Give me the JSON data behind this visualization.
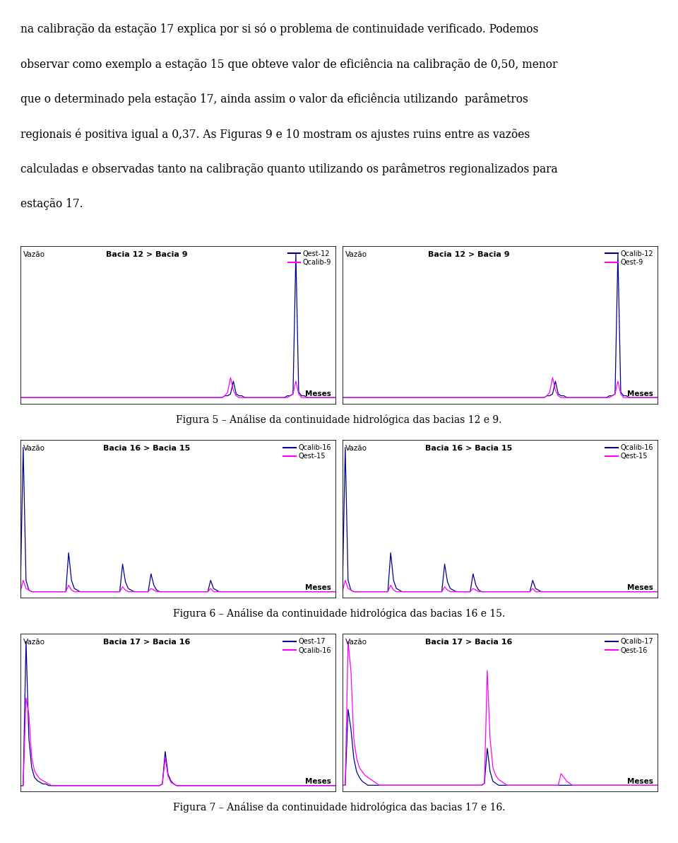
{
  "text_paragraph_lines": [
    "na calibração da estação 17 explica por si só o problema de continuidade verificado. Podemos",
    "observar como exemplo a estação 15 que obteve valor de eficiência na calibração de 0,50, menor",
    "que o determinado pela estação 17, ainda assim o valor da eficiência utilizando  parâmetros",
    "regionais é positiva igual a 0,37. As Figuras 9 e 10 mostram os ajustes ruins entre as vazões",
    "calculadas e observadas tanto na calibração quanto utilizando os parâmetros regionalizados para",
    "estação 17."
  ],
  "dark_blue": "#00008B",
  "magenta": "#FF00FF",
  "captions": [
    "Figura 5 – Análise da continuidade hidrológica das bacias 12 e 9.",
    "Figura 6 – Análise da continuidade hidrológica das bacias 16 e 15.",
    "Figura 7 – Análise da continuidade hidrológica das bacias 17 e 16."
  ],
  "panels": [
    {
      "title": "Bacia 12 > Bacia 9",
      "line1_label": "Qest-12",
      "line2_label": "Qcalib-9",
      "line1_color": "#00008B",
      "line2_color": "#FF00FF",
      "ylabel": "Vazão",
      "xlabel": "Meses",
      "data1": [
        1,
        1,
        1,
        1,
        1,
        1,
        1,
        1,
        1,
        1,
        1,
        1,
        1,
        1,
        1,
        1,
        1,
        1,
        1,
        1,
        1,
        1,
        1,
        1,
        1,
        1,
        1,
        1,
        1,
        1,
        1,
        1,
        1,
        1,
        1,
        1,
        1,
        1,
        1,
        1,
        1,
        1,
        1,
        1,
        1,
        1,
        1,
        1,
        1,
        1,
        1,
        1,
        1,
        1,
        1,
        1,
        1,
        1,
        1,
        1,
        1,
        1,
        1,
        1,
        1,
        1,
        1,
        1,
        1,
        1,
        1,
        1,
        2,
        2,
        3,
        10,
        3,
        2,
        2,
        1,
        1,
        1,
        1,
        1,
        1,
        1,
        1,
        1,
        1,
        1,
        1,
        1,
        1,
        1,
        2,
        2,
        3,
        80,
        4,
        2,
        2,
        1,
        1,
        1,
        1,
        1,
        1,
        1,
        1,
        1,
        1,
        1
      ],
      "data2": [
        1,
        1,
        1,
        1,
        1,
        1,
        1,
        1,
        1,
        1,
        1,
        1,
        1,
        1,
        1,
        1,
        1,
        1,
        1,
        1,
        1,
        1,
        1,
        1,
        1,
        1,
        1,
        1,
        1,
        1,
        1,
        1,
        1,
        1,
        1,
        1,
        1,
        1,
        1,
        1,
        1,
        1,
        1,
        1,
        1,
        1,
        1,
        1,
        1,
        1,
        1,
        1,
        1,
        1,
        1,
        1,
        1,
        1,
        1,
        1,
        1,
        1,
        1,
        1,
        1,
        1,
        1,
        1,
        1,
        1,
        1,
        1,
        2,
        4,
        12,
        5,
        2,
        1,
        1,
        1,
        1,
        1,
        1,
        1,
        1,
        1,
        1,
        1,
        1,
        1,
        1,
        1,
        1,
        1,
        1,
        2,
        3,
        10,
        3,
        1,
        1,
        1,
        1,
        1,
        1,
        1,
        1,
        1,
        1,
        1,
        1,
        1
      ]
    },
    {
      "title": "Bacia 12 > Bacia 9",
      "line1_label": "Qcalib-12",
      "line2_label": "Qest-9",
      "line1_color": "#00008B",
      "line2_color": "#FF00FF",
      "ylabel": "Vazão",
      "xlabel": "Meses",
      "data1": [
        1,
        1,
        1,
        1,
        1,
        1,
        1,
        1,
        1,
        1,
        1,
        1,
        1,
        1,
        1,
        1,
        1,
        1,
        1,
        1,
        1,
        1,
        1,
        1,
        1,
        1,
        1,
        1,
        1,
        1,
        1,
        1,
        1,
        1,
        1,
        1,
        1,
        1,
        1,
        1,
        1,
        1,
        1,
        1,
        1,
        1,
        1,
        1,
        1,
        1,
        1,
        1,
        1,
        1,
        1,
        1,
        1,
        1,
        1,
        1,
        1,
        1,
        1,
        1,
        1,
        1,
        1,
        1,
        1,
        1,
        1,
        1,
        2,
        2,
        3,
        10,
        3,
        2,
        2,
        1,
        1,
        1,
        1,
        1,
        1,
        1,
        1,
        1,
        1,
        1,
        1,
        1,
        1,
        1,
        2,
        2,
        3,
        80,
        4,
        2,
        2,
        1,
        1,
        1,
        1,
        1,
        1,
        1,
        1,
        1,
        1,
        1
      ],
      "data2": [
        1,
        1,
        1,
        1,
        1,
        1,
        1,
        1,
        1,
        1,
        1,
        1,
        1,
        1,
        1,
        1,
        1,
        1,
        1,
        1,
        1,
        1,
        1,
        1,
        1,
        1,
        1,
        1,
        1,
        1,
        1,
        1,
        1,
        1,
        1,
        1,
        1,
        1,
        1,
        1,
        1,
        1,
        1,
        1,
        1,
        1,
        1,
        1,
        1,
        1,
        1,
        1,
        1,
        1,
        1,
        1,
        1,
        1,
        1,
        1,
        1,
        1,
        1,
        1,
        1,
        1,
        1,
        1,
        1,
        1,
        1,
        1,
        2,
        4,
        12,
        5,
        2,
        1,
        1,
        1,
        1,
        1,
        1,
        1,
        1,
        1,
        1,
        1,
        1,
        1,
        1,
        1,
        1,
        1,
        1,
        2,
        3,
        10,
        3,
        1,
        1,
        1,
        1,
        1,
        1,
        1,
        1,
        1,
        1,
        1,
        1,
        1
      ]
    },
    {
      "title": "Bacia 16 > Bacia 15",
      "line1_label": "Qcalib-16",
      "line2_label": "Qest-15",
      "line1_color": "#00008B",
      "line2_color": "#FF00FF",
      "ylabel": "Vazão",
      "xlabel": "Meses",
      "data1": [
        1,
        90,
        8,
        2,
        1,
        1,
        1,
        1,
        1,
        1,
        1,
        1,
        1,
        1,
        1,
        1,
        1,
        25,
        8,
        3,
        2,
        1,
        1,
        1,
        1,
        1,
        1,
        1,
        1,
        1,
        1,
        1,
        1,
        1,
        1,
        1,
        18,
        7,
        3,
        2,
        1,
        1,
        1,
        1,
        1,
        1,
        12,
        5,
        2,
        1,
        1,
        1,
        1,
        1,
        1,
        1,
        1,
        1,
        1,
        1,
        1,
        1,
        1,
        1,
        1,
        1,
        1,
        8,
        3,
        2,
        1,
        1,
        1,
        1,
        1,
        1,
        1,
        1,
        1,
        1,
        1,
        1,
        1,
        1,
        1,
        1,
        1,
        1,
        1,
        1,
        1,
        1,
        1,
        1,
        1,
        1,
        1,
        1,
        1,
        1,
        1,
        1,
        1,
        1,
        1,
        1,
        1,
        1,
        1,
        1,
        1,
        1
      ],
      "data2": [
        1,
        8,
        3,
        2,
        1,
        1,
        1,
        1,
        1,
        1,
        1,
        1,
        1,
        1,
        1,
        1,
        1,
        5,
        2,
        1,
        1,
        1,
        1,
        1,
        1,
        1,
        1,
        1,
        1,
        1,
        1,
        1,
        1,
        1,
        1,
        1,
        4,
        2,
        1,
        1,
        1,
        1,
        1,
        1,
        1,
        1,
        3,
        2,
        1,
        1,
        1,
        1,
        1,
        1,
        1,
        1,
        1,
        1,
        1,
        1,
        1,
        1,
        1,
        1,
        1,
        1,
        1,
        3,
        1,
        1,
        1,
        1,
        1,
        1,
        1,
        1,
        1,
        1,
        1,
        1,
        1,
        1,
        1,
        1,
        1,
        1,
        1,
        1,
        1,
        1,
        1,
        1,
        1,
        1,
        1,
        1,
        1,
        1,
        1,
        1,
        1,
        1,
        1,
        1,
        1,
        1,
        1,
        1,
        1,
        1,
        1,
        1
      ]
    },
    {
      "title": "Bacia 16 > Bacia 15",
      "line1_label": "Qcalib-16",
      "line2_label": "Qest-15",
      "line1_color": "#00008B",
      "line2_color": "#FF00FF",
      "ylabel": "Vazão",
      "xlabel": "Meses",
      "data1": [
        1,
        90,
        8,
        2,
        1,
        1,
        1,
        1,
        1,
        1,
        1,
        1,
        1,
        1,
        1,
        1,
        1,
        25,
        8,
        3,
        2,
        1,
        1,
        1,
        1,
        1,
        1,
        1,
        1,
        1,
        1,
        1,
        1,
        1,
        1,
        1,
        18,
        7,
        3,
        2,
        1,
        1,
        1,
        1,
        1,
        1,
        12,
        5,
        2,
        1,
        1,
        1,
        1,
        1,
        1,
        1,
        1,
        1,
        1,
        1,
        1,
        1,
        1,
        1,
        1,
        1,
        1,
        8,
        3,
        2,
        1,
        1,
        1,
        1,
        1,
        1,
        1,
        1,
        1,
        1,
        1,
        1,
        1,
        1,
        1,
        1,
        1,
        1,
        1,
        1,
        1,
        1,
        1,
        1,
        1,
        1,
        1,
        1,
        1,
        1,
        1,
        1,
        1,
        1,
        1,
        1,
        1,
        1,
        1,
        1,
        1,
        1
      ],
      "data2": [
        1,
        8,
        3,
        2,
        1,
        1,
        1,
        1,
        1,
        1,
        1,
        1,
        1,
        1,
        1,
        1,
        1,
        5,
        2,
        1,
        1,
        1,
        1,
        1,
        1,
        1,
        1,
        1,
        1,
        1,
        1,
        1,
        1,
        1,
        1,
        1,
        4,
        2,
        1,
        1,
        1,
        1,
        1,
        1,
        1,
        1,
        3,
        2,
        1,
        1,
        1,
        1,
        1,
        1,
        1,
        1,
        1,
        1,
        1,
        1,
        1,
        1,
        1,
        1,
        1,
        1,
        1,
        3,
        1,
        1,
        1,
        1,
        1,
        1,
        1,
        1,
        1,
        1,
        1,
        1,
        1,
        1,
        1,
        1,
        1,
        1,
        1,
        1,
        1,
        1,
        1,
        1,
        1,
        1,
        1,
        1,
        1,
        1,
        1,
        1,
        1,
        1,
        1,
        1,
        1,
        1,
        1,
        1,
        1,
        1,
        1,
        1
      ]
    },
    {
      "title": "Bacia 17 > Bacia 16",
      "line1_label": "Qest-17",
      "line2_label": "Qcalib-16",
      "line1_color": "#00008B",
      "line2_color": "#FF00FF",
      "ylabel": "Vazão",
      "xlabel": "Meses",
      "data1": [
        1,
        1,
        90,
        30,
        12,
        6,
        4,
        3,
        2,
        2,
        1,
        1,
        1,
        1,
        1,
        1,
        1,
        1,
        1,
        1,
        1,
        1,
        1,
        1,
        1,
        1,
        1,
        1,
        1,
        1,
        1,
        1,
        1,
        1,
        1,
        1,
        1,
        1,
        1,
        1,
        1,
        1,
        1,
        1,
        1,
        1,
        1,
        1,
        1,
        1,
        2,
        22,
        8,
        4,
        2,
        1,
        1,
        1,
        1,
        1,
        1,
        1,
        1,
        1,
        1,
        1,
        1,
        1,
        1,
        1,
        1,
        1,
        1,
        1,
        1,
        1,
        1,
        1,
        1,
        1,
        1,
        1,
        1,
        1,
        1,
        1,
        1,
        1,
        1,
        1,
        1,
        1,
        1,
        1,
        1,
        1,
        1,
        1,
        1,
        1,
        1,
        1,
        1,
        1,
        1,
        1,
        1,
        1,
        1,
        1,
        1,
        1
      ],
      "data2": [
        1,
        1,
        55,
        45,
        18,
        10,
        7,
        5,
        4,
        3,
        2,
        1,
        1,
        1,
        1,
        1,
        1,
        1,
        1,
        1,
        1,
        1,
        1,
        1,
        1,
        1,
        1,
        1,
        1,
        1,
        1,
        1,
        1,
        1,
        1,
        1,
        1,
        1,
        1,
        1,
        1,
        1,
        1,
        1,
        1,
        1,
        1,
        1,
        1,
        1,
        2,
        18,
        7,
        3,
        2,
        1,
        1,
        1,
        1,
        1,
        1,
        1,
        1,
        1,
        1,
        1,
        1,
        1,
        1,
        1,
        1,
        1,
        1,
        1,
        1,
        1,
        1,
        1,
        1,
        1,
        1,
        1,
        1,
        1,
        1,
        1,
        1,
        1,
        1,
        1,
        1,
        1,
        1,
        1,
        1,
        1,
        1,
        1,
        1,
        1,
        1,
        1,
        1,
        1,
        1,
        1,
        1,
        1,
        1,
        1,
        1,
        1
      ]
    },
    {
      "title": "Bacia 17 > Bacia 16",
      "line1_label": "Qcalib-17",
      "line2_label": "Qest-16",
      "line1_color": "#00008B",
      "line2_color": "#FF00FF",
      "ylabel": "Vazão",
      "xlabel": "Meses",
      "data1": [
        1,
        1,
        40,
        30,
        15,
        8,
        5,
        3,
        2,
        1,
        1,
        1,
        1,
        1,
        1,
        1,
        1,
        1,
        1,
        1,
        1,
        1,
        1,
        1,
        1,
        1,
        1,
        1,
        1,
        1,
        1,
        1,
        1,
        1,
        1,
        1,
        1,
        1,
        1,
        1,
        1,
        1,
        1,
        1,
        1,
        1,
        1,
        1,
        1,
        1,
        2,
        20,
        8,
        3,
        2,
        1,
        1,
        1,
        1,
        1,
        1,
        1,
        1,
        1,
        1,
        1,
        1,
        1,
        1,
        1,
        1,
        1,
        1,
        1,
        1,
        1,
        1,
        1,
        1,
        1,
        1,
        1,
        1,
        1,
        1,
        1,
        1,
        1,
        1,
        1,
        1,
        1,
        1,
        1,
        1,
        1,
        1,
        1,
        1,
        1,
        1,
        1,
        1,
        1,
        1,
        1,
        1,
        1,
        1,
        1,
        1,
        1
      ],
      "data2": [
        1,
        1,
        75,
        60,
        25,
        15,
        10,
        8,
        6,
        5,
        4,
        3,
        2,
        1,
        1,
        1,
        1,
        1,
        1,
        1,
        1,
        1,
        1,
        1,
        1,
        1,
        1,
        1,
        1,
        1,
        1,
        1,
        1,
        1,
        1,
        1,
        1,
        1,
        1,
        1,
        1,
        1,
        1,
        1,
        1,
        1,
        1,
        1,
        1,
        1,
        2,
        60,
        25,
        10,
        6,
        4,
        3,
        2,
        1,
        1,
        1,
        1,
        1,
        1,
        1,
        1,
        1,
        1,
        1,
        1,
        1,
        1,
        1,
        1,
        1,
        1,
        1,
        7,
        5,
        3,
        2,
        1,
        1,
        1,
        1,
        1,
        1,
        1,
        1,
        1,
        1,
        1,
        1,
        1,
        1,
        1,
        1,
        1,
        1,
        1,
        1,
        1,
        1,
        1,
        1,
        1,
        1,
        1,
        1,
        1,
        1,
        1
      ]
    }
  ]
}
